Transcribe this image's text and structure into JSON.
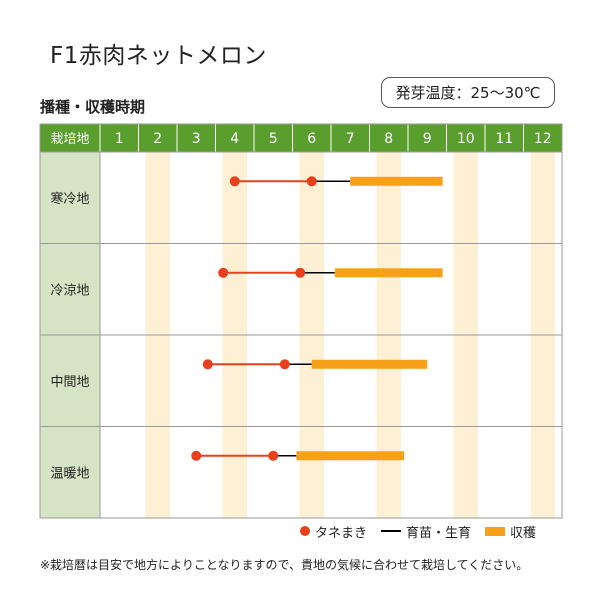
{
  "title": "F1赤肉ネットメロン",
  "section_title": "播種・収穫時期",
  "temperature_label": "発芽温度：25～30℃",
  "chart_data": {
    "type": "table",
    "row_header": "栽培地",
    "months": [
      "1",
      "2",
      "3",
      "4",
      "5",
      "6",
      "7",
      "8",
      "9",
      "10",
      "11",
      "12"
    ],
    "regions": [
      {
        "name": "寒冷地",
        "sowing": 4.0,
        "transplant": 6.0,
        "harvest": [
          7.0,
          9.4
        ]
      },
      {
        "name": "冷涼地",
        "sowing": 3.7,
        "transplant": 5.7,
        "harvest": [
          6.6,
          9.4
        ]
      },
      {
        "name": "中間地",
        "sowing": 3.3,
        "transplant": 5.3,
        "harvest": [
          6.0,
          9.0
        ]
      },
      {
        "name": "温暖地",
        "sowing": 3.0,
        "transplant": 5.0,
        "harvest": [
          5.6,
          8.4
        ]
      }
    ]
  },
  "legend": {
    "sowing": "タネまき",
    "growing": "育苗・生育",
    "harvest": "収穫"
  },
  "footnote": "※栽培暦は目安で地方によりことなりますので、貴地の気候に合わせて栽培してください。",
  "colors": {
    "header_bg": "#5a9e2e",
    "header_text": "#ffffff",
    "region_bg": "#d7e3c5",
    "stripe": "#fdf0d5",
    "sowing": "#e8401c",
    "harvest": "#f7a11a",
    "growing_line": "#000000",
    "grid": "#999999"
  }
}
